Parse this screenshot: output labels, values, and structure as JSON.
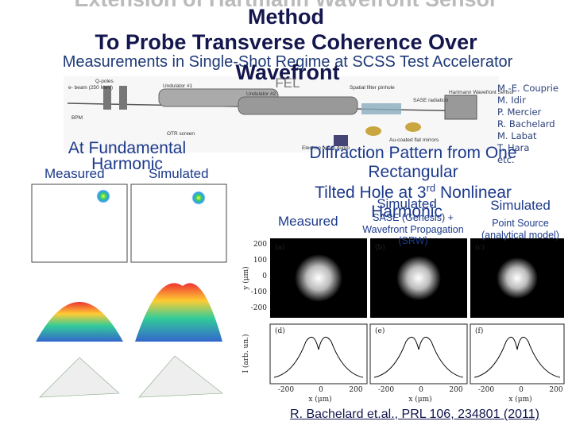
{
  "title": {
    "line0": "Extension of Hartmann Wavefront Sensor",
    "line1": "Method",
    "line2": "To Probe Transverse Coherence Over",
    "line3": "Wavefront"
  },
  "subtitle": {
    "line1": "Measurements in Single-Shot Regime at SCSS Test Accelerator",
    "line2": "FEL"
  },
  "authors": [
    "M.-E. Couprie",
    "M. Idir",
    "P. Mercier",
    "R. Bachelard",
    "M. Labat",
    "T. Hara",
    "etc."
  ],
  "schematic": {
    "ebeam": "e- beam (250 MeV)",
    "qpoles": "Q-poles",
    "und1": "Undulator #1",
    "und2": "Undulator #2",
    "bpm": "BPM",
    "otr": "OTR screen",
    "pinhole": "Spatial filter pinhole",
    "sase": "SASE radiation",
    "hartmann": "Hartmann Wavefront Sensor",
    "mirrors": "Au-coated flat mirrors",
    "dump": "Electron beam dump"
  },
  "left": {
    "heading1": "At Fundamental",
    "heading2": "Harmonic",
    "measured": "Measured",
    "simulated": "Simulated"
  },
  "right": {
    "heading1": "Diffraction Pattern from One",
    "heading2": "Rectangular",
    "heading3": "Tilted Hole at 3",
    "heading3_sup": "rd",
    "heading3_end": " Nonlinear",
    "heading4": "Harmonic",
    "measured": "Measured",
    "sim_sase": "Simulated",
    "sase_line1": "SASE (Genesis) +",
    "sase_line2": "Wavefront Propagation",
    "sase_line3": "(SRW)",
    "sim_point": "Simulated",
    "point_line1": "Point Source",
    "point_line2": "(analytical model)"
  },
  "figure": {
    "panels": [
      "(a)",
      "(b)",
      "(c)",
      "(d)",
      "(e)",
      "(f)"
    ],
    "y_label": "y (μm)",
    "i_label": "I (arb. un.)",
    "x_label": "x (μm)",
    "y_ticks": [
      "200",
      "100",
      "0",
      "-100",
      "-200"
    ],
    "x_ticks": [
      "-200",
      "0",
      "200"
    ]
  },
  "citation": "R. Bachelard et.al., PRL 106, 234801 (2011)"
}
